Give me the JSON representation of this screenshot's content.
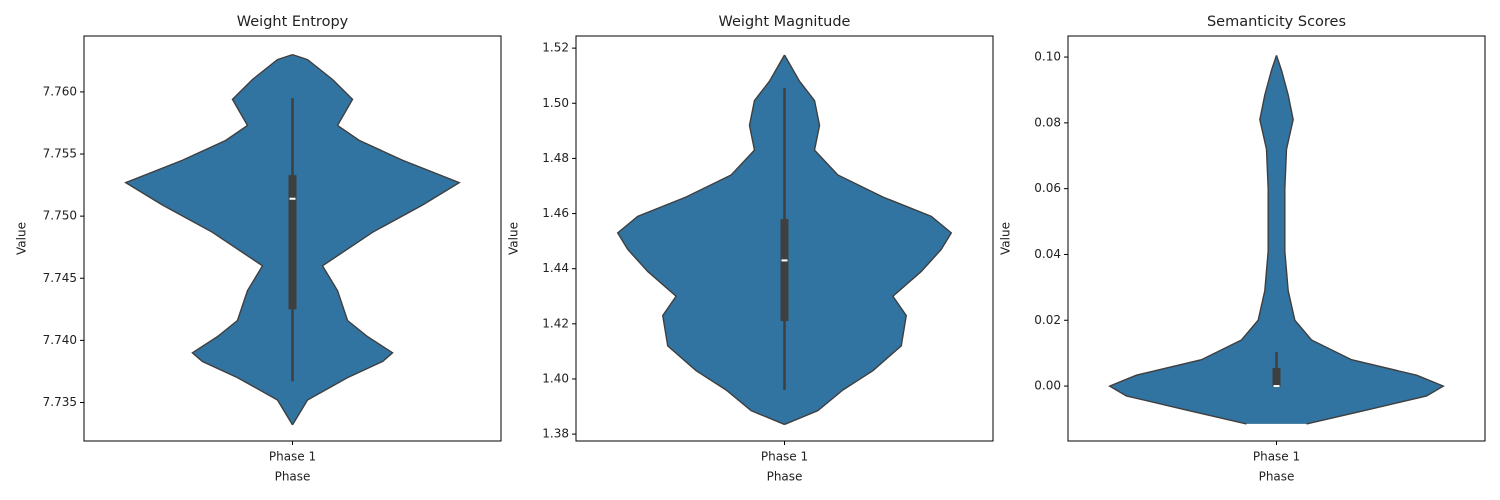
{
  "chart_data": [
    {
      "type": "violin",
      "title": "Weight Entropy",
      "xlabel": "Phase",
      "ylabel": "Value",
      "categories": [
        "Phase 1"
      ],
      "color": "#3274a1",
      "ylim": [
        7.7319,
        7.7645
      ],
      "yticks": [
        7.735,
        {
          "value": 7.74,
          "label": "7.740"
        },
        7.745,
        {
          "value": 7.75,
          "label": "7.750"
        },
        7.755,
        {
          "value": 7.76,
          "label": "7.760"
        }
      ],
      "violin": {
        "y": [
          7.7332,
          7.7352,
          7.737,
          7.7383,
          7.739,
          7.7403,
          7.7416,
          7.744,
          7.746,
          7.7487,
          7.7509,
          7.7527,
          7.7545,
          7.7561,
          7.7573,
          7.7594,
          7.761,
          7.7626,
          7.763
        ],
        "density": [
          0,
          0.09,
          0.33,
          0.54,
          0.6,
          0.45,
          0.33,
          0.27,
          0.18,
          0.48,
          0.78,
          1,
          0.66,
          0.4,
          0.27,
          0.36,
          0.24,
          0.09,
          0
        ]
      },
      "box": {
        "whisker_low": 7.7367,
        "q1": 7.7425,
        "median": 7.7514,
        "q3": 7.7533,
        "whisker_high": 7.7595
      }
    },
    {
      "type": "violin",
      "title": "Weight Magnitude",
      "xlabel": "Phase",
      "ylabel": "Value",
      "categories": [
        "Phase 1"
      ],
      "color": "#3274a1",
      "ylim": [
        1.3775,
        1.5244
      ],
      "yticks": [
        1.38,
        {
          "value": 1.4,
          "label": "1.40"
        },
        1.42,
        1.44,
        1.46,
        1.48,
        {
          "value": 1.5,
          "label": "1.50"
        },
        1.52
      ],
      "violin": {
        "y": [
          1.3835,
          1.3885,
          1.396,
          1.403,
          1.412,
          1.423,
          1.43,
          1.439,
          1.447,
          1.453,
          1.459,
          1.466,
          1.474,
          1.483,
          1.492,
          1.501,
          1.508,
          1.5175
        ],
        "density": [
          0,
          0.2,
          0.35,
          0.53,
          0.7,
          0.73,
          0.65,
          0.82,
          0.94,
          1,
          0.88,
          0.59,
          0.32,
          0.18,
          0.21,
          0.18,
          0.09,
          0
        ]
      },
      "box": {
        "whisker_low": 1.396,
        "q1": 1.421,
        "median": 1.443,
        "q3": 1.458,
        "whisker_high": 1.5055
      }
    },
    {
      "type": "violin",
      "title": "Semanticity Scores",
      "xlabel": "Phase",
      "ylabel": "Value",
      "categories": [
        "Phase 1"
      ],
      "color": "#3274a1",
      "ylim": [
        -0.0167,
        0.1064
      ],
      "yticks": [
        {
          "value": 0,
          "label": "0.00"
        },
        0.02,
        0.04,
        0.06,
        0.08,
        {
          "value": 0.1,
          "label": "0.10"
        }
      ],
      "violin": {
        "y": [
          -0.0115,
          -0.0073,
          -0.003,
          0.0,
          0.0033,
          0.008,
          0.014,
          0.02,
          0.029,
          0.041,
          0.06,
          0.072,
          0.081,
          0.0885,
          0.096,
          0.1005
        ],
        "density": [
          0.18,
          0.54,
          0.9,
          1,
          0.84,
          0.45,
          0.21,
          0.11,
          0.07,
          0.05,
          0.05,
          0.06,
          0.1,
          0.07,
          0.03,
          0
        ]
      },
      "box": {
        "whisker_low": -0.0003,
        "q1": -0.0003,
        "median": 0.0,
        "q3": 0.0055,
        "whisker_high": 0.0103
      }
    }
  ]
}
